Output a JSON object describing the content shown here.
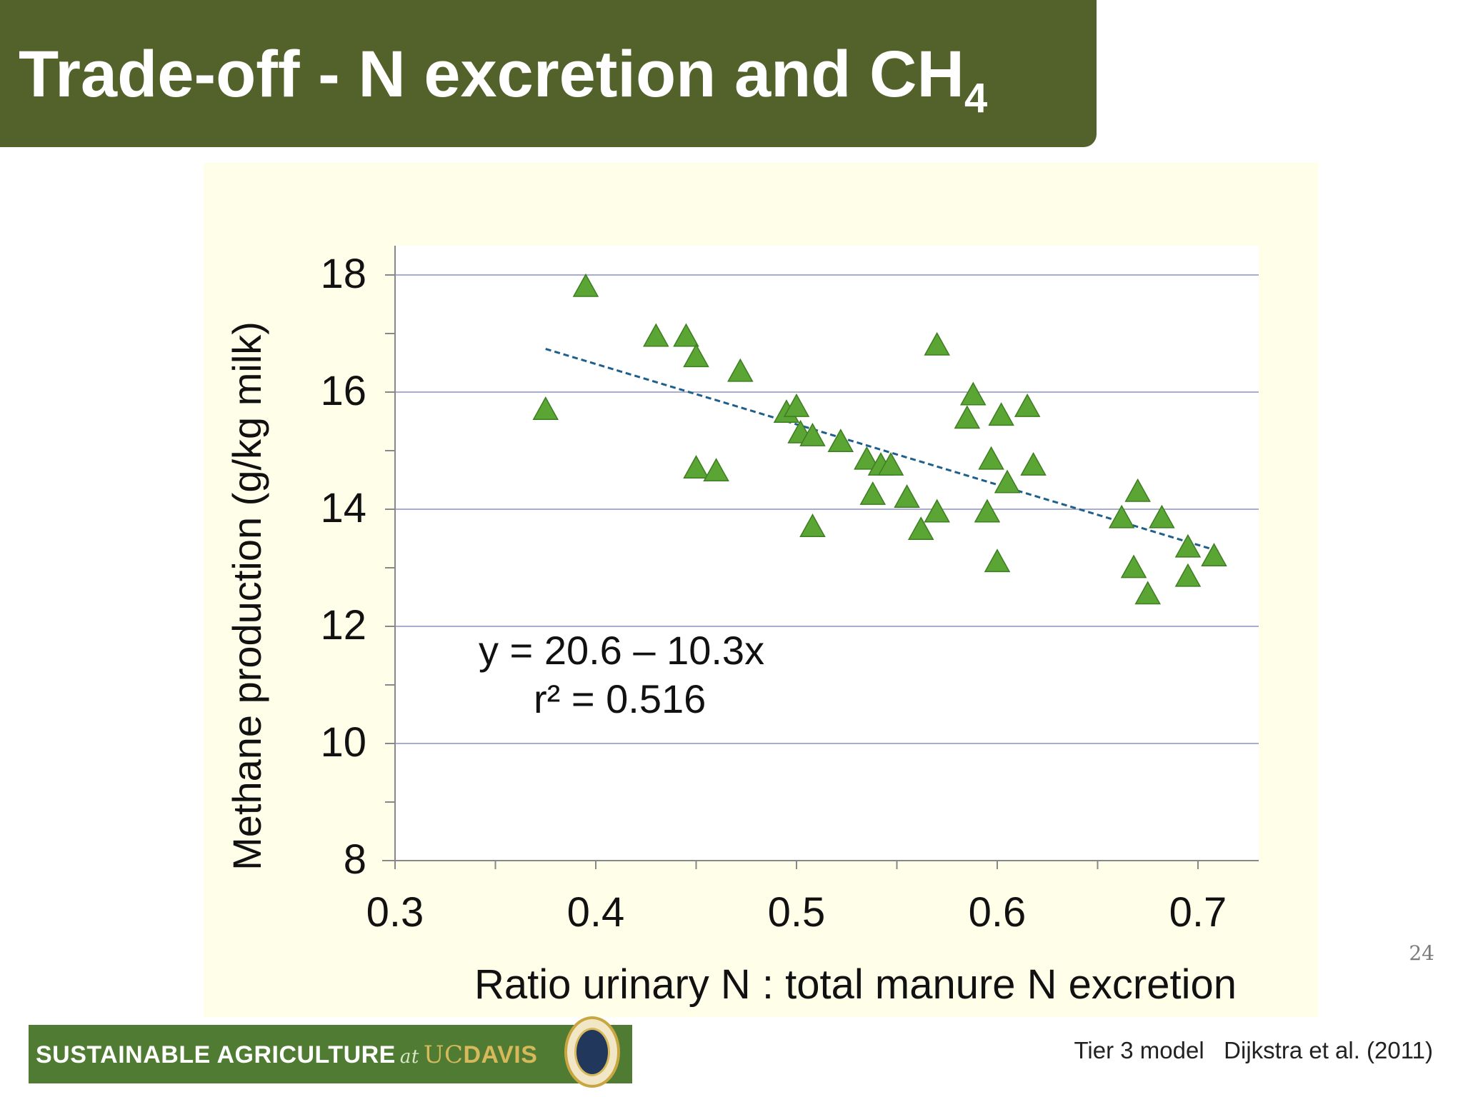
{
  "slide": {
    "title_main": "Trade-off - N excretion and CH",
    "title_subscript": "4",
    "slide_number": "24",
    "citation": "Tier 3 model   Dijkstra et al. (2011)"
  },
  "logo": {
    "text_main": "SUSTAINABLE  AGRICULTURE",
    "text_at": "at",
    "text_uc": "UC",
    "text_davis": "DAVIS"
  },
  "colors": {
    "title_bar": "#52622a",
    "chart_background": "#fefee9",
    "marker_fill": "#5aa533",
    "trend_line": "#1f5f8b",
    "gridline": "#8d92b8"
  },
  "chart_data": {
    "type": "scatter",
    "title": "",
    "xlabel": "Ratio urinary N : total manure N excretion",
    "ylabel": "Methane production (g/kg milk)",
    "xlim": [
      0.3,
      0.74
    ],
    "ylim": [
      8,
      18.5
    ],
    "x_ticks": [
      0.3,
      0.4,
      0.5,
      0.6,
      0.7
    ],
    "x_tick_labels": [
      "0.3",
      "0.4",
      "0.5",
      "0.6",
      "0.7"
    ],
    "y_ticks": [
      8,
      10,
      12,
      14,
      16,
      18
    ],
    "y_tick_labels": [
      "8",
      "10",
      "12",
      "14",
      "16",
      "18"
    ],
    "grid": true,
    "equation": "y = 20.6 – 10.3x",
    "r_squared": "r² = 0.516",
    "trendline": {
      "intercept": 20.6,
      "slope": -10.3,
      "x_range": [
        0.375,
        0.71
      ]
    },
    "points": [
      {
        "x": 0.375,
        "y": 15.7
      },
      {
        "x": 0.395,
        "y": 17.8
      },
      {
        "x": 0.43,
        "y": 16.95
      },
      {
        "x": 0.445,
        "y": 16.95
      },
      {
        "x": 0.45,
        "y": 16.6
      },
      {
        "x": 0.45,
        "y": 14.7
      },
      {
        "x": 0.46,
        "y": 14.65
      },
      {
        "x": 0.472,
        "y": 16.35
      },
      {
        "x": 0.495,
        "y": 15.65
      },
      {
        "x": 0.5,
        "y": 15.75
      },
      {
        "x": 0.502,
        "y": 15.3
      },
      {
        "x": 0.508,
        "y": 15.25
      },
      {
        "x": 0.508,
        "y": 13.7
      },
      {
        "x": 0.522,
        "y": 15.15
      },
      {
        "x": 0.535,
        "y": 14.85
      },
      {
        "x": 0.538,
        "y": 14.25
      },
      {
        "x": 0.542,
        "y": 14.75
      },
      {
        "x": 0.547,
        "y": 14.75
      },
      {
        "x": 0.555,
        "y": 14.2
      },
      {
        "x": 0.562,
        "y": 13.65
      },
      {
        "x": 0.57,
        "y": 13.95
      },
      {
        "x": 0.57,
        "y": 16.8
      },
      {
        "x": 0.585,
        "y": 15.55
      },
      {
        "x": 0.588,
        "y": 15.95
      },
      {
        "x": 0.595,
        "y": 13.95
      },
      {
        "x": 0.597,
        "y": 14.85
      },
      {
        "x": 0.6,
        "y": 13.1
      },
      {
        "x": 0.602,
        "y": 15.6
      },
      {
        "x": 0.605,
        "y": 14.45
      },
      {
        "x": 0.615,
        "y": 15.75
      },
      {
        "x": 0.618,
        "y": 14.75
      },
      {
        "x": 0.662,
        "y": 13.85
      },
      {
        "x": 0.668,
        "y": 13.0
      },
      {
        "x": 0.67,
        "y": 14.3
      },
      {
        "x": 0.675,
        "y": 12.55
      },
      {
        "x": 0.682,
        "y": 13.85
      },
      {
        "x": 0.695,
        "y": 12.85
      },
      {
        "x": 0.695,
        "y": 13.35
      },
      {
        "x": 0.708,
        "y": 13.2
      }
    ]
  }
}
